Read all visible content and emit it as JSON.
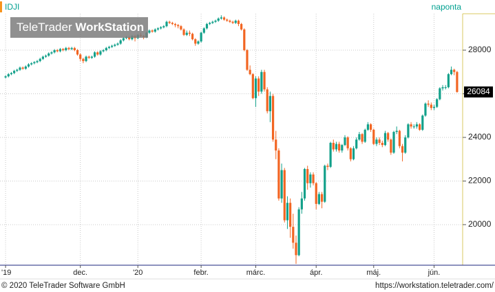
{
  "chart_data": {
    "type": "candlestick",
    "symbol": "IDJI",
    "interval": "naponta",
    "up_color": "#12a08a",
    "down_color": "#f26522",
    "grid": true,
    "ylim": [
      18140,
      29670
    ],
    "yticks": [
      20000,
      22000,
      24000,
      26000,
      28000
    ],
    "categories": [
      "'19",
      null,
      null,
      null,
      null,
      null,
      null,
      null,
      null,
      null,
      null,
      null,
      null,
      null,
      null,
      null,
      null,
      null,
      null,
      null,
      null,
      null,
      null,
      null,
      null,
      null,
      "dec.",
      null,
      null,
      null,
      null,
      null,
      null,
      null,
      null,
      null,
      null,
      null,
      null,
      null,
      null,
      null,
      null,
      null,
      null,
      null,
      "'20",
      null,
      null,
      null,
      null,
      null,
      null,
      null,
      null,
      null,
      null,
      null,
      null,
      null,
      null,
      null,
      null,
      null,
      null,
      null,
      null,
      null,
      "febr.",
      null,
      null,
      null,
      null,
      null,
      null,
      null,
      null,
      null,
      null,
      null,
      null,
      null,
      null,
      null,
      null,
      null,
      null,
      "márc.",
      null,
      null,
      null,
      null,
      null,
      null,
      null,
      null,
      null,
      null,
      null,
      null,
      null,
      null,
      null,
      null,
      null,
      null,
      null,
      null,
      "ápr.",
      null,
      null,
      null,
      null,
      null,
      null,
      null,
      null,
      null,
      null,
      null,
      null,
      null,
      null,
      null,
      null,
      null,
      null,
      null,
      "máj.",
      null,
      null,
      null,
      null,
      null,
      null,
      null,
      null,
      null,
      null,
      null,
      null,
      null,
      null,
      null,
      null,
      null,
      null,
      null,
      null,
      "jún.",
      null,
      null,
      null,
      null,
      null,
      null,
      null,
      null
    ],
    "open": [
      26750,
      26800,
      26900,
      26950,
      27050,
      27100,
      27200,
      27150,
      27250,
      27350,
      27400,
      27450,
      27500,
      27600,
      27700,
      27750,
      27850,
      27900,
      28000,
      27950,
      28050,
      28000,
      28100,
      28050,
      28100,
      28000,
      27800,
      27600,
      27500,
      27700,
      27650,
      27700,
      27900,
      27800,
      27950,
      28000,
      28100,
      28150,
      28200,
      28250,
      28300,
      28450,
      28550,
      28600,
      28500,
      28650,
      28550,
      28700,
      28650,
      28600,
      28800,
      28900,
      28850,
      28950,
      29000,
      29050,
      29100,
      29300,
      29250,
      29200,
      29150,
      29100,
      28950,
      28700,
      28800,
      28750,
      28500,
      28300,
      28400,
      28800,
      29000,
      29200,
      29250,
      29300,
      29350,
      29450,
      29500,
      29400,
      29350,
      29300,
      29250,
      29350,
      29200,
      28950,
      28000,
      27100,
      26900,
      25800,
      26700,
      26100,
      27000,
      26200,
      25200,
      25900,
      23900,
      23400,
      21200,
      22500,
      20200,
      21000,
      19900,
      19170,
      18600,
      20700,
      21200,
      22550,
      21900,
      22300,
      21900,
      20950,
      21400,
      21050,
      22700,
      22650,
      23750,
      23450,
      23700,
      23400,
      23650,
      24000,
      23500,
      23000,
      23500,
      23900,
      24150,
      23800,
      24350,
      24600,
      24350,
      23700,
      23900,
      23750,
      23650,
      24200,
      23900,
      23300,
      24250,
      24300,
      23600,
      23300,
      24000,
      24600,
      24500,
      24500,
      24600,
      24350,
      25000,
      25550,
      25500,
      25350,
      25400,
      25750,
      26250,
      26300,
      26300,
      26900,
      27100,
      27000
    ],
    "high": [
      26850,
      26950,
      27000,
      27100,
      27150,
      27250,
      27250,
      27300,
      27400,
      27450,
      27500,
      27550,
      27650,
      27750,
      27800,
      27900,
      27950,
      28050,
      28050,
      28100,
      28100,
      28150,
      28150,
      28150,
      28150,
      28050,
      27850,
      27650,
      27750,
      27750,
      27750,
      27950,
      27950,
      28000,
      28050,
      28150,
      28200,
      28250,
      28300,
      28350,
      28500,
      28600,
      28650,
      28650,
      28700,
      28700,
      28750,
      28800,
      28700,
      28850,
      28950,
      28950,
      29000,
      29050,
      29100,
      29150,
      29350,
      29350,
      29300,
      29250,
      29200,
      29150,
      29000,
      28900,
      28900,
      28800,
      28550,
      28450,
      28850,
      29050,
      29250,
      29300,
      29350,
      29400,
      29500,
      29600,
      29550,
      29450,
      29400,
      29350,
      29400,
      29400,
      29250,
      29000,
      28050,
      27300,
      26950,
      26800,
      26800,
      27100,
      27100,
      26300,
      26100,
      26000,
      24300,
      23500,
      22800,
      22600,
      21300,
      21200,
      20500,
      19500,
      20800,
      21500,
      22600,
      22700,
      22400,
      22400,
      21950,
      21500,
      21500,
      22750,
      22800,
      23800,
      23900,
      23800,
      23800,
      23700,
      24100,
      24050,
      23550,
      23600,
      24000,
      24250,
      24200,
      24400,
      24700,
      24650,
      24400,
      24000,
      24000,
      23850,
      24300,
      24250,
      23950,
      24300,
      24500,
      24350,
      23700,
      24100,
      24650,
      24700,
      24600,
      24700,
      24650,
      25050,
      25600,
      25700,
      25600,
      25500,
      25800,
      26300,
      26400,
      26400,
      26950,
      27250,
      27150,
      27050
    ],
    "low": [
      26700,
      26750,
      26850,
      26900,
      27000,
      27050,
      27100,
      27100,
      27200,
      27300,
      27350,
      27400,
      27450,
      27550,
      27650,
      27700,
      27800,
      27850,
      27900,
      27900,
      27950,
      27950,
      28000,
      28000,
      27950,
      27750,
      27500,
      27400,
      27450,
      27600,
      27600,
      27650,
      27750,
      27750,
      27900,
      27950,
      28050,
      28100,
      28150,
      28200,
      28250,
      28400,
      28500,
      28450,
      28450,
      28400,
      28500,
      28600,
      28500,
      28550,
      28750,
      28800,
      28800,
      28900,
      28950,
      29000,
      29050,
      29200,
      29150,
      29050,
      29000,
      28900,
      28650,
      28650,
      28650,
      28450,
      28200,
      28250,
      28350,
      28750,
      28950,
      29150,
      29200,
      29250,
      29300,
      29400,
      29350,
      29300,
      29250,
      29200,
      29200,
      29100,
      28900,
      27950,
      27050,
      26850,
      25750,
      25400,
      25900,
      26000,
      26100,
      25100,
      24700,
      23800,
      23000,
      21100,
      21000,
      20100,
      19800,
      19400,
      18900,
      18200,
      18550,
      20500,
      21100,
      21600,
      21700,
      21800,
      20700,
      20900,
      20750,
      21000,
      22500,
      22600,
      23350,
      23350,
      23300,
      23300,
      23600,
      23400,
      22900,
      22950,
      23450,
      23850,
      23700,
      23750,
      24300,
      24250,
      23650,
      23600,
      23650,
      23550,
      23600,
      23800,
      23200,
      23250,
      24150,
      23500,
      22900,
      23250,
      23950,
      24400,
      24400,
      24400,
      24300,
      24300,
      24950,
      25400,
      25250,
      25250,
      25350,
      25700,
      26150,
      26200,
      26250,
      26850,
      26850,
      26050
    ],
    "close": [
      26800,
      26900,
      26950,
      27050,
      27100,
      27200,
      27150,
      27250,
      27350,
      27400,
      27450,
      27500,
      27600,
      27700,
      27750,
      27850,
      27900,
      28000,
      27950,
      28050,
      28000,
      28100,
      28050,
      28100,
      28000,
      27800,
      27600,
      27500,
      27700,
      27650,
      27700,
      27900,
      27800,
      27950,
      28000,
      28100,
      28150,
      28200,
      28250,
      28300,
      28450,
      28550,
      28600,
      28500,
      28650,
      28550,
      28700,
      28650,
      28600,
      28800,
      28900,
      28850,
      28950,
      29000,
      29050,
      29100,
      29300,
      29250,
      29200,
      29150,
      29100,
      28950,
      28700,
      28800,
      28750,
      28500,
      28300,
      28400,
      28800,
      29000,
      29200,
      29250,
      29300,
      29350,
      29450,
      29500,
      29400,
      29350,
      29300,
      29250,
      29350,
      29200,
      28950,
      28000,
      27100,
      26900,
      25800,
      26700,
      26100,
      27000,
      26200,
      25200,
      25900,
      23900,
      23400,
      21200,
      22500,
      20200,
      21000,
      19900,
      19170,
      18600,
      20700,
      21200,
      22550,
      21900,
      22300,
      21900,
      20950,
      21400,
      21050,
      22700,
      22650,
      23750,
      23450,
      23700,
      23400,
      23650,
      24000,
      23500,
      23000,
      23500,
      23900,
      24150,
      23800,
      24350,
      24600,
      24350,
      23700,
      23900,
      23750,
      23650,
      24200,
      23900,
      23300,
      24250,
      24300,
      23600,
      23300,
      24000,
      24600,
      24500,
      24500,
      24600,
      24350,
      25000,
      25550,
      25500,
      25350,
      25400,
      25750,
      26250,
      26300,
      26300,
      26900,
      27100,
      27000,
      26084
    ]
  },
  "watermark": {
    "brand": "TeleTrader",
    "product": "WorkStation"
  },
  "footer": {
    "copyright": "© 2020 TeleTrader Software GmbH",
    "url": "https://workstation.teletrader.com/"
  }
}
